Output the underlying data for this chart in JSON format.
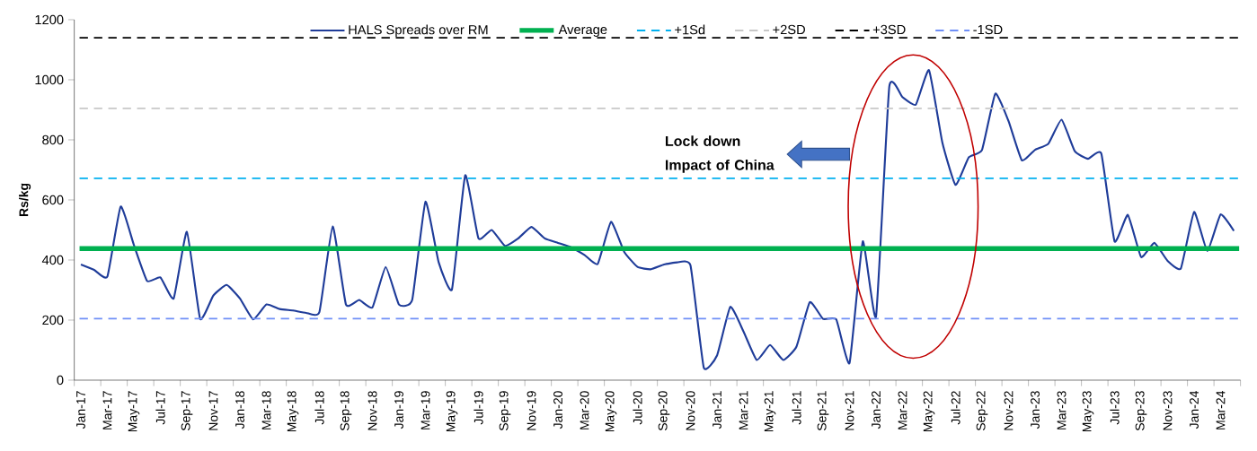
{
  "chart_data": {
    "type": "line",
    "ylabel": "Rs/kg",
    "legend": "top",
    "categories": [
      "Jan-17",
      null,
      "Mar-17",
      null,
      "May-17",
      null,
      "Jul-17",
      null,
      "Sep-17",
      null,
      "Nov-17",
      null,
      "Jan-18",
      null,
      "Mar-18",
      null,
      "May-18",
      null,
      "Jul-18",
      null,
      "Sep-18",
      null,
      "Nov-18",
      null,
      "Jan-19",
      null,
      "Mar-19",
      null,
      "May-19",
      null,
      "Jul-19",
      null,
      "Sep-19",
      null,
      "Nov-19",
      null,
      "Jan-20",
      null,
      "Mar-20",
      null,
      "May-20",
      null,
      "Jul-20",
      null,
      "Sep-20",
      null,
      "Nov-20",
      null,
      "Jan-21",
      null,
      "Mar-21",
      null,
      "May-21",
      null,
      "Jul-21",
      null,
      "Sep-21",
      null,
      "Nov-21",
      null,
      "Jan-22",
      null,
      "Mar-22",
      null,
      "May-22",
      null,
      "Jul-22",
      null,
      "Sep-22",
      null,
      "Nov-22",
      null,
      "Jan-23",
      null,
      "Mar-23",
      null,
      "May-23",
      null,
      "Jul-23",
      null,
      "Sep-23",
      null,
      "Nov-23",
      null,
      "Jan-24",
      null,
      "Mar-24",
      null
    ],
    "series": [
      {
        "name": "HALS Spreads over RM",
        "color": "#1f3c99",
        "line_style": "solid",
        "values": [
          385,
          367,
          345,
          578,
          450,
          330,
          342,
          272,
          494,
          204,
          282,
          317,
          272,
          202,
          252,
          237,
          232,
          224,
          227,
          512,
          252,
          267,
          242,
          377,
          252,
          267,
          594,
          392,
          302,
          682,
          472,
          500,
          447,
          472,
          510,
          472,
          457,
          442,
          417,
          387,
          527,
          427,
          377,
          369,
          385,
          392,
          382,
          42,
          82,
          244,
          162,
          67,
          117,
          67,
          112,
          260,
          204,
          202,
          57,
          462,
          212,
          977,
          942,
          917,
          1032,
          792,
          650,
          742,
          767,
          954,
          862,
          732,
          767,
          787,
          867,
          762,
          737,
          754,
          462,
          550,
          410,
          457,
          397,
          372,
          560,
          430,
          552,
          497
        ]
      }
    ],
    "ref_lines": [
      {
        "axis": "y",
        "value": 438,
        "label": "Average",
        "color": "#00b050",
        "line_style": "solid"
      },
      {
        "axis": "y",
        "value": 672,
        "label": "+1Sd",
        "color": "#00b0f0",
        "line_style": "dashed"
      },
      {
        "axis": "y",
        "value": 905,
        "label": "+2SD",
        "color": "#c8c8c8",
        "line_style": "dashed"
      },
      {
        "axis": "y",
        "value": 1140,
        "label": "+3SD",
        "color": "#000000",
        "line_style": "dashed"
      },
      {
        "axis": "y",
        "value": 205,
        "label": "-1SD",
        "color": "#6f8ff7",
        "line_style": "dashed"
      }
    ],
    "annotations": [
      "Lock down Impact of China"
    ],
    "ylim": [
      0,
      1200
    ],
    "yticks": [
      0,
      200,
      400,
      600,
      800,
      1000,
      1200
    ]
  }
}
